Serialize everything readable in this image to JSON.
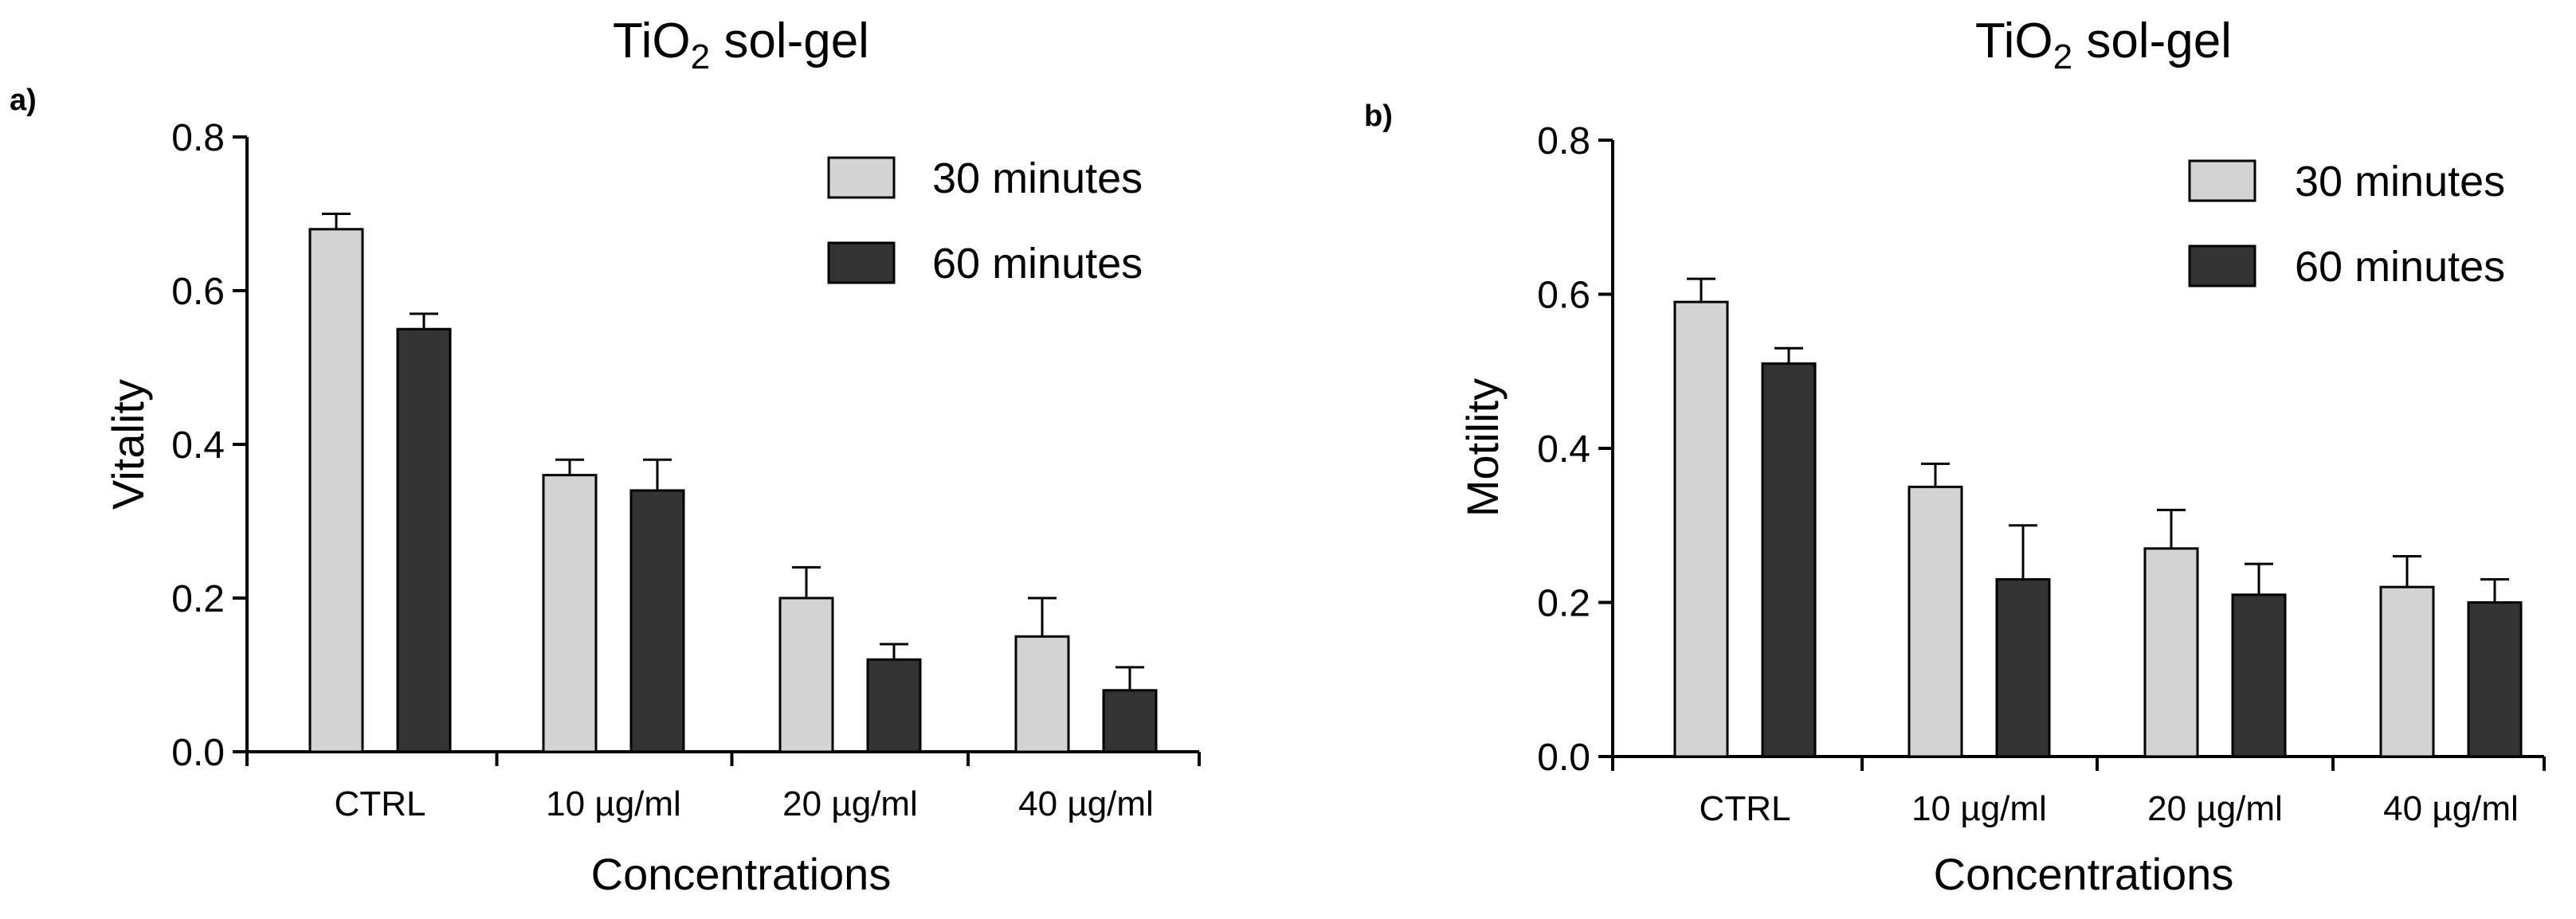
{
  "colors": {
    "series_30": "#d3d3d3",
    "series_60": "#333333",
    "axis": "#000000"
  },
  "chart_data": [
    {
      "type": "bar",
      "panel_label": "a)",
      "title_main": "TiO",
      "title_sub": "2",
      "title_rest": " sol-gel",
      "xlabel": "Concentrations",
      "ylabel": "Vitality",
      "ylim": [
        0,
        0.8
      ],
      "yticks": [
        "0.0",
        "0.2",
        "0.4",
        "0.6",
        "0.8"
      ],
      "categories": [
        "CTRL",
        "10 µg/ml",
        "20 µg/ml",
        "40 µg/ml"
      ],
      "legend_position": "top-right",
      "series": [
        {
          "name": "30 minutes",
          "values": [
            0.68,
            0.36,
            0.2,
            0.15
          ],
          "errors": [
            0.02,
            0.02,
            0.04,
            0.05
          ]
        },
        {
          "name": "60 minutes",
          "values": [
            0.55,
            0.34,
            0.12,
            0.08
          ],
          "errors": [
            0.02,
            0.04,
            0.02,
            0.03
          ]
        }
      ]
    },
    {
      "type": "bar",
      "panel_label": "b)",
      "title_main": "TiO",
      "title_sub": "2",
      "title_rest": " sol-gel",
      "xlabel": "Concentrations",
      "ylabel": "Motility",
      "ylim": [
        0,
        0.8
      ],
      "yticks": [
        "0.0",
        "0.2",
        "0.4",
        "0.6",
        "0.8"
      ],
      "categories": [
        "CTRL",
        "10 µg/ml",
        "20 µg/ml",
        "40 µg/ml"
      ],
      "legend_position": "top-right",
      "series": [
        {
          "name": "30 minutes",
          "values": [
            0.59,
            0.35,
            0.27,
            0.22
          ],
          "errors": [
            0.03,
            0.03,
            0.05,
            0.04
          ]
        },
        {
          "name": "60 minutes",
          "values": [
            0.51,
            0.23,
            0.21,
            0.2
          ],
          "errors": [
            0.02,
            0.07,
            0.04,
            0.03
          ]
        }
      ]
    }
  ]
}
